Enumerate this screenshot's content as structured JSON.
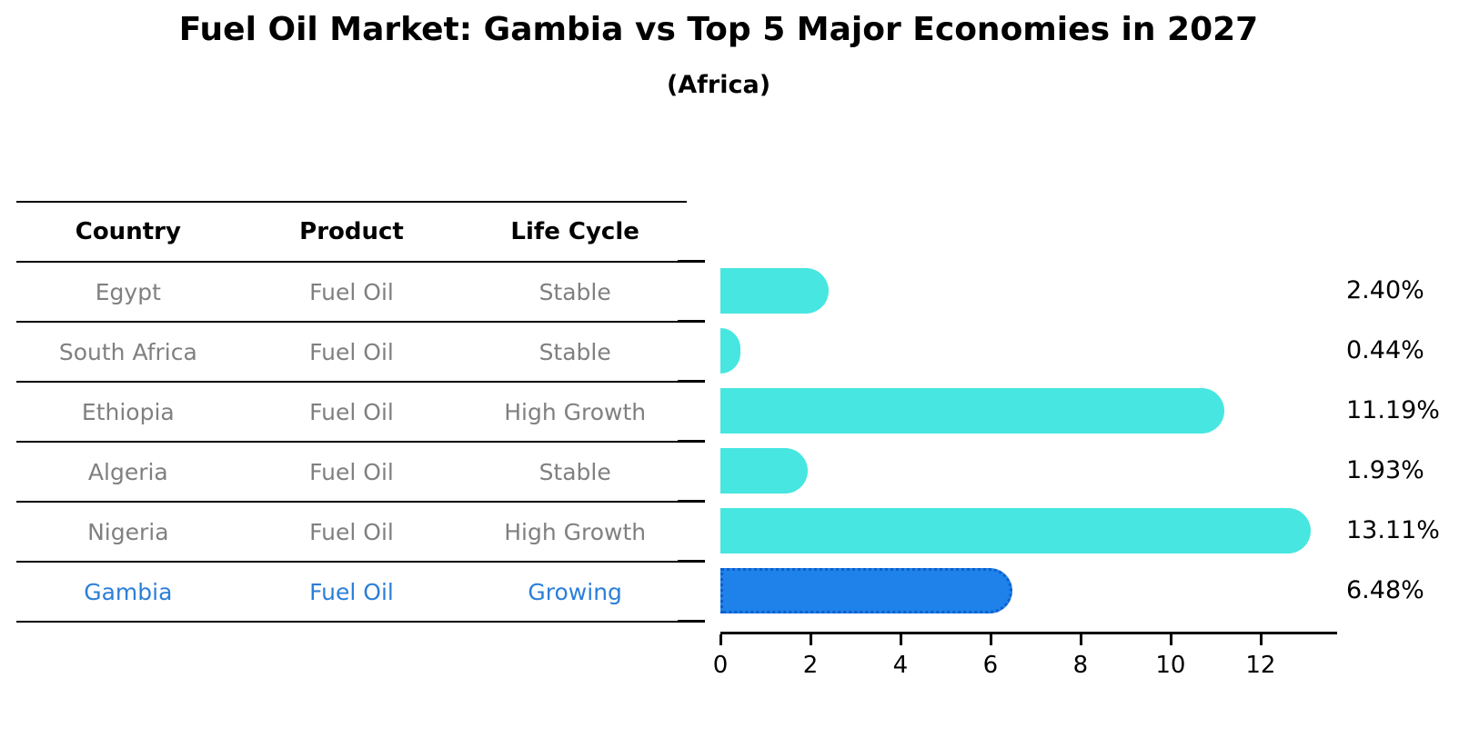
{
  "title": "Fuel Oil Market: Gambia vs Top 5 Major Economies in 2027",
  "subtitle": "(Africa)",
  "table": {
    "headers": [
      "Country",
      "Product",
      "Life Cycle"
    ],
    "rows": [
      {
        "country": "Egypt",
        "product": "Fuel Oil",
        "life_cycle": "Stable",
        "highlight": false
      },
      {
        "country": "South Africa",
        "product": "Fuel Oil",
        "life_cycle": "Stable",
        "highlight": false
      },
      {
        "country": "Ethiopia",
        "product": "Fuel Oil",
        "life_cycle": "High Growth",
        "highlight": false
      },
      {
        "country": "Algeria",
        "product": "Fuel Oil",
        "life_cycle": "Stable",
        "highlight": false
      },
      {
        "country": "Nigeria",
        "product": "Fuel Oil",
        "life_cycle": "High Growth",
        "highlight": false
      },
      {
        "country": "Gambia",
        "product": "Fuel Oil",
        "life_cycle": "Growing",
        "highlight": true
      }
    ]
  },
  "chart_data": {
    "type": "bar",
    "orientation": "horizontal",
    "title": "Fuel Oil Market: Gambia vs Top 5 Major Economies in 2027",
    "subtitle": "(Africa)",
    "categories": [
      "Egypt",
      "South Africa",
      "Ethiopia",
      "Algeria",
      "Nigeria",
      "Gambia"
    ],
    "values": [
      2.4,
      0.44,
      11.19,
      1.93,
      13.11,
      6.48
    ],
    "value_labels": [
      "2.40%",
      "0.44%",
      "11.19%",
      "1.93%",
      "13.11%",
      "6.48%"
    ],
    "xticks": [
      0,
      2,
      4,
      6,
      8,
      10,
      12
    ],
    "xtick_labels": [
      "0",
      "2",
      "4",
      "6",
      "8",
      "10",
      "12"
    ],
    "xlim": [
      0,
      13.7
    ],
    "grid": false,
    "legend": "none",
    "highlight_index": 5,
    "colors": {
      "bar": "#47E6E0",
      "highlight_bar": "#1E82EA",
      "highlight_border": "#0D5FCD",
      "highlight_text": "#2B7FD9",
      "row_text": "#808080",
      "axis": "#000000"
    }
  }
}
